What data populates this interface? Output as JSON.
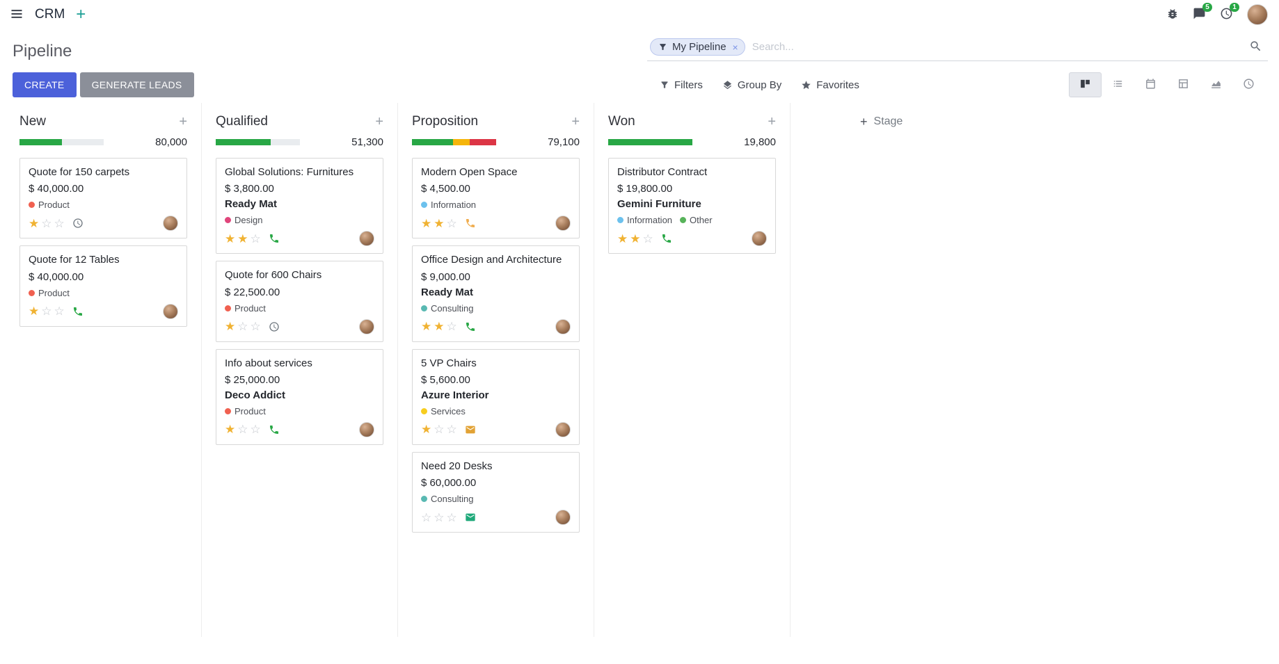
{
  "navbar": {
    "app_name": "CRM",
    "message_badge": "5",
    "activity_badge": "1"
  },
  "control_panel": {
    "title": "Pipeline",
    "search": {
      "facet_label": "My Pipeline",
      "remove_label": "×",
      "placeholder": "Search..."
    },
    "create_label": "CREATE",
    "generate_leads_label": "GENERATE LEADS",
    "filters_label": "Filters",
    "group_by_label": "Group By",
    "favorites_label": "Favorites"
  },
  "colors": {
    "primary_button": "#4c61da",
    "secondary_button": "#8b8f99",
    "success": "#28a745",
    "warning": "#f0ad4e",
    "danger": "#dc3545",
    "star_filled": "#f0b232",
    "badge": "#28a745"
  },
  "board": {
    "add_stage_label": "Stage",
    "columns": [
      {
        "name": "New",
        "total": "80,000",
        "progress": [
          {
            "color": "#28a745",
            "pct": 50
          }
        ],
        "cards": [
          {
            "title": "Quote for 150 carpets",
            "amount": "$ 40,000.00",
            "partner": null,
            "tags": [
              {
                "label": "Product",
                "color": "#f06050"
              }
            ],
            "stars": 1,
            "activity": {
              "icon": "clock",
              "color": "#6c757d"
            }
          },
          {
            "title": "Quote for 12 Tables",
            "amount": "$ 40,000.00",
            "partner": null,
            "tags": [
              {
                "label": "Product",
                "color": "#f06050"
              }
            ],
            "stars": 1,
            "activity": {
              "icon": "phone",
              "color": "#28a745"
            }
          }
        ]
      },
      {
        "name": "Qualified",
        "total": "51,300",
        "progress": [
          {
            "color": "#28a745",
            "pct": 65
          }
        ],
        "cards": [
          {
            "title": "Global Solutions: Furnitures",
            "amount": "$ 3,800.00",
            "partner": "Ready Mat",
            "tags": [
              {
                "label": "Design",
                "color": "#e0457b"
              }
            ],
            "stars": 2,
            "activity": {
              "icon": "phone",
              "color": "#28a745"
            }
          },
          {
            "title": "Quote for 600 Chairs",
            "amount": "$ 22,500.00",
            "partner": null,
            "tags": [
              {
                "label": "Product",
                "color": "#f06050"
              }
            ],
            "stars": 1,
            "activity": {
              "icon": "clock",
              "color": "#6c757d"
            }
          },
          {
            "title": "Info about services",
            "amount": "$ 25,000.00",
            "partner": "Deco Addict",
            "tags": [
              {
                "label": "Product",
                "color": "#f06050"
              }
            ],
            "stars": 1,
            "activity": {
              "icon": "phone",
              "color": "#28a745"
            }
          }
        ]
      },
      {
        "name": "Proposition",
        "total": "79,100",
        "progress": [
          {
            "color": "#28a745",
            "pct": 49
          },
          {
            "color": "#f5b50b",
            "pct": 20
          },
          {
            "color": "#dc3545",
            "pct": 31
          }
        ],
        "cards": [
          {
            "title": "Modern Open Space",
            "amount": "$ 4,500.00",
            "partner": null,
            "tags": [
              {
                "label": "Information",
                "color": "#6cc1ed"
              }
            ],
            "stars": 2,
            "activity": {
              "icon": "phone",
              "color": "#f0ad4e"
            }
          },
          {
            "title": "Office Design and Architecture",
            "amount": "$ 9,000.00",
            "partner": "Ready Mat",
            "tags": [
              {
                "label": "Consulting",
                "color": "#59b9b2"
              }
            ],
            "stars": 2,
            "activity": {
              "icon": "phone",
              "color": "#28a745"
            }
          },
          {
            "title": "5 VP Chairs",
            "amount": "$ 5,600.00",
            "partner": "Azure Interior",
            "tags": [
              {
                "label": "Services",
                "color": "#f7cd1f"
              }
            ],
            "stars": 1,
            "activity": {
              "icon": "envelope",
              "color": "#e2a234"
            }
          },
          {
            "title": "Need 20 Desks",
            "amount": "$ 60,000.00",
            "partner": null,
            "tags": [
              {
                "label": "Consulting",
                "color": "#59b9b2"
              }
            ],
            "stars": 0,
            "activity": {
              "icon": "envelope",
              "color": "#1fa97a"
            }
          }
        ]
      },
      {
        "name": "Won",
        "total": "19,800",
        "progress": [
          {
            "color": "#28a745",
            "pct": 100
          }
        ],
        "cards": [
          {
            "title": "Distributor Contract",
            "amount": "$ 19,800.00",
            "partner": "Gemini Furniture",
            "tags": [
              {
                "label": "Information",
                "color": "#6cc1ed"
              },
              {
                "label": "Other",
                "color": "#57b35a"
              }
            ],
            "stars": 2,
            "activity": {
              "icon": "phone",
              "color": "#28a745"
            }
          }
        ]
      }
    ]
  }
}
